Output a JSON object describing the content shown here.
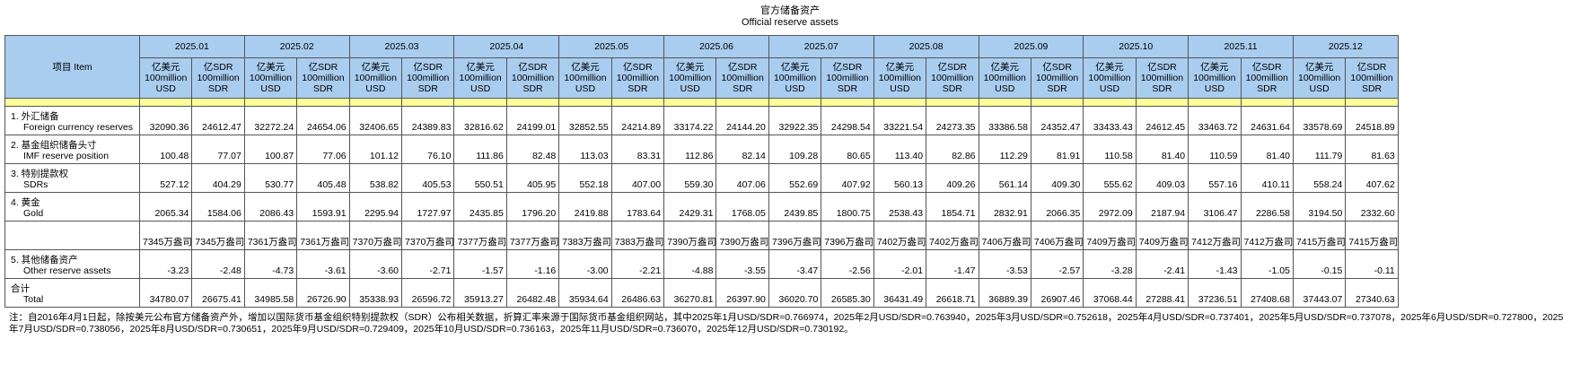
{
  "title": {
    "zh": "官方储备资产",
    "en": "Official reserve assets"
  },
  "table": {
    "item_header": "项目  Item",
    "periods": [
      "2025.01",
      "2025.02",
      "2025.03",
      "2025.04",
      "2025.05",
      "2025.06",
      "2025.07",
      "2025.08",
      "2025.09",
      "2025.10",
      "2025.11",
      "2025.12"
    ],
    "units": [
      {
        "lines": [
          "亿美元",
          "100million",
          "USD"
        ]
      },
      {
        "lines": [
          "亿SDR",
          "100million",
          "SDR"
        ]
      }
    ],
    "rows": [
      {
        "zh": "1. 外汇储备",
        "en": "Foreign currency reserves",
        "values": [
          "32090.36",
          "24612.47",
          "32272.24",
          "24654.06",
          "32406.65",
          "24389.83",
          "32816.62",
          "24199.01",
          "32852.55",
          "24214.89",
          "33174.22",
          "24144.20",
          "32922.35",
          "24298.54",
          "33221.54",
          "24273.35",
          "33386.58",
          "24352.47",
          "33433.43",
          "24612.45",
          "33463.72",
          "24631.64",
          "33578.69",
          "24518.89"
        ]
      },
      {
        "zh": "2. 基金组织储备头寸",
        "en": "IMF reserve position",
        "values": [
          "100.48",
          "77.07",
          "100.87",
          "77.06",
          "101.12",
          "76.10",
          "111.86",
          "82.48",
          "113.03",
          "83.31",
          "112.86",
          "82.14",
          "109.28",
          "80.65",
          "113.40",
          "82.86",
          "112.29",
          "81.91",
          "110.58",
          "81.40",
          "110.59",
          "81.40",
          "111.79",
          "81.63"
        ]
      },
      {
        "zh": "3. 特别提款权",
        "en": "SDRs",
        "values": [
          "527.12",
          "404.29",
          "530.77",
          "405.48",
          "538.82",
          "405.53",
          "550.51",
          "405.95",
          "552.18",
          "407.00",
          "559.30",
          "407.06",
          "552.69",
          "407.92",
          "560.13",
          "409.26",
          "561.14",
          "409.30",
          "555.62",
          "409.03",
          "557.16",
          "410.11",
          "558.24",
          "407.62"
        ]
      },
      {
        "zh": "4. 黄金",
        "en": "Gold",
        "values": [
          "2065.34",
          "1584.06",
          "2086.43",
          "1593.91",
          "2295.94",
          "1727.97",
          "2435.85",
          "1796.20",
          "2419.88",
          "1783.64",
          "2429.31",
          "1768.05",
          "2439.85",
          "1800.75",
          "2538.43",
          "1854.71",
          "2832.91",
          "2066.35",
          "2972.09",
          "2187.94",
          "3106.47",
          "2286.58",
          "3194.50",
          "2332.60"
        ]
      },
      {
        "values": [
          "7345万盎司",
          "7345万盎司",
          "7361万盎司",
          "7361万盎司",
          "7370万盎司",
          "7370万盎司",
          "7377万盎司",
          "7377万盎司",
          "7383万盎司",
          "7383万盎司",
          "7390万盎司",
          "7390万盎司",
          "7396万盎司",
          "7396万盎司",
          "7402万盎司",
          "7402万盎司",
          "7406万盎司",
          "7406万盎司",
          "7409万盎司",
          "7409万盎司",
          "7412万盎司",
          "7412万盎司",
          "7415万盎司",
          "7415万盎司"
        ]
      },
      {
        "zh": "5. 其他储备资产",
        "en": "Other reserve assets",
        "values": [
          "-3.23",
          "-2.48",
          "-4.73",
          "-3.61",
          "-3.60",
          "-2.71",
          "-1.57",
          "-1.16",
          "-3.00",
          "-2.21",
          "-4.88",
          "-3.55",
          "-3.47",
          "-2.56",
          "-2.01",
          "-1.47",
          "-3.53",
          "-2.57",
          "-3.28",
          "-2.41",
          "-1.43",
          "-1.05",
          "-0.15",
          "-0.11"
        ]
      },
      {
        "zh": "合计",
        "en": "Total",
        "values": [
          "34780.07",
          "26675.41",
          "34985.58",
          "26726.90",
          "35338.93",
          "26596.72",
          "35913.27",
          "26482.48",
          "35934.64",
          "26486.63",
          "36270.81",
          "26397.90",
          "36020.70",
          "26585.30",
          "36431.49",
          "26618.71",
          "36889.39",
          "26907.46",
          "37068.44",
          "27288.41",
          "37236.51",
          "27408.68",
          "37443.07",
          "27340.63"
        ]
      }
    ]
  },
  "note": "注：自2016年4月1日起，除按美元公布官方储备资产外，增加以国际货币基金组织特别提款权（SDR）公布相关数据，折算汇率来源于国际货币基金组织网站，其中2025年1月USD/SDR=0.766974，2025年2月USD/SDR=0.763940，2025年3月USD/SDR=0.752618，2025年4月USD/SDR=0.737401，2025年5月USD/SDR=0.737078，2025年6月USD/SDR=0.727800，2025年7月USD/SDR=0.738056，2025年8月USD/SDR=0.730651，2025年9月USD/SDR=0.729409，2025年10月USD/SDR=0.736163，2025年11月USD/SDR=0.736070，2025年12月USD/SDR=0.730192。"
}
